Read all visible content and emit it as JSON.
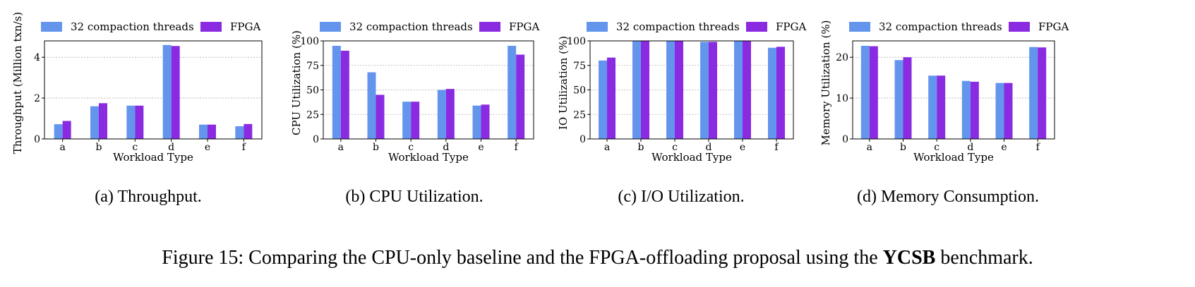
{
  "colors": {
    "baseline": "#6495ED",
    "fpga": "#8A2BE2",
    "grid": "#b0b0b0"
  },
  "legend": {
    "baseline": "32 compaction threads",
    "fpga": "FPGA"
  },
  "figure_caption": {
    "prefix": "Figure 15: Comparing the CPU-only baseline and the FPGA-offloading proposal using the ",
    "bold": "YCSB",
    "suffix": " benchmark."
  },
  "chart_data": [
    {
      "type": "bar",
      "title": "",
      "caption": "(a) Throughput.",
      "categories": [
        "a",
        "b",
        "c",
        "d",
        "e",
        "f"
      ],
      "xlabel": "Workload Type",
      "ylabel": "Throughput (Million txn/s)",
      "ylim": [
        0,
        4.8
      ],
      "yticks": [
        0,
        2,
        4
      ],
      "grid": true,
      "series": [
        {
          "name": "32 compaction threads",
          "values": [
            0.72,
            1.6,
            1.63,
            4.6,
            0.7,
            0.62
          ]
        },
        {
          "name": "FPGA",
          "values": [
            0.88,
            1.75,
            1.63,
            4.55,
            0.7,
            0.73
          ]
        }
      ]
    },
    {
      "type": "bar",
      "title": "",
      "caption": "(b) CPU Utilization.",
      "categories": [
        "a",
        "b",
        "c",
        "d",
        "e",
        "f"
      ],
      "xlabel": "Workload Type",
      "ylabel": "CPU Utilization (%)",
      "ylim": [
        0,
        100
      ],
      "yticks": [
        0,
        25,
        50,
        75,
        100
      ],
      "grid": true,
      "series": [
        {
          "name": "32 compaction threads",
          "values": [
            95,
            68,
            38,
            50,
            34,
            95
          ]
        },
        {
          "name": "FPGA",
          "values": [
            90,
            45,
            38,
            51,
            35,
            86
          ]
        }
      ]
    },
    {
      "type": "bar",
      "title": "",
      "caption": "(c) I/O Utilization.",
      "categories": [
        "a",
        "b",
        "c",
        "d",
        "e",
        "f"
      ],
      "xlabel": "Workload Type",
      "ylabel": "IO Utilization (%)",
      "ylim": [
        0,
        100
      ],
      "yticks": [
        0,
        25,
        50,
        75,
        100
      ],
      "grid": true,
      "series": [
        {
          "name": "32 compaction threads",
          "values": [
            80,
            100,
            100,
            99,
            100,
            93
          ]
        },
        {
          "name": "FPGA",
          "values": [
            83,
            100,
            100,
            99,
            100,
            94
          ]
        }
      ]
    },
    {
      "type": "bar",
      "title": "",
      "caption": "(d) Memory Consumption.",
      "categories": [
        "a",
        "b",
        "c",
        "d",
        "e",
        "f"
      ],
      "xlabel": "Workload Type",
      "ylabel": "Memory Utilization (%)",
      "ylim": [
        0,
        24
      ],
      "yticks": [
        0,
        10,
        20
      ],
      "grid": true,
      "series": [
        {
          "name": "32 compaction threads",
          "values": [
            22.8,
            19.3,
            15.5,
            14.2,
            13.7,
            22.5
          ]
        },
        {
          "name": "FPGA",
          "values": [
            22.7,
            20,
            15.5,
            14,
            13.7,
            22.4
          ]
        }
      ]
    }
  ]
}
